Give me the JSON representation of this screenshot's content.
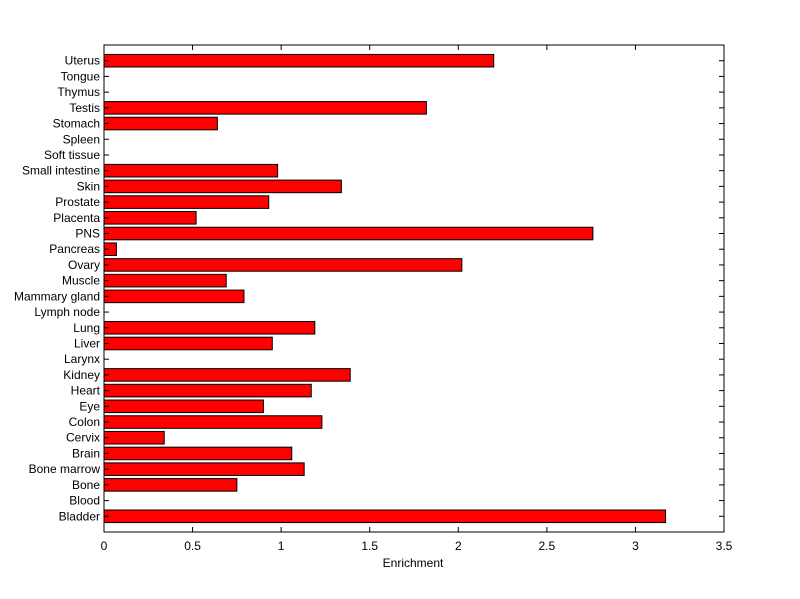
{
  "chart_data": {
    "type": "bar",
    "orientation": "horizontal",
    "title": "",
    "xlabel": "Enrichment",
    "ylabel": "",
    "xlim": [
      0,
      3.5
    ],
    "xticks": [
      "0",
      "0.5",
      "1",
      "1.5",
      "2",
      "2.5",
      "3",
      "3.5"
    ],
    "categories": [
      "Bladder",
      "Blood",
      "Bone",
      "Bone marrow",
      "Brain",
      "Cervix",
      "Colon",
      "Eye",
      "Heart",
      "Kidney",
      "Larynx",
      "Liver",
      "Lung",
      "Lymph node",
      "Mammary gland",
      "Muscle",
      "Ovary",
      "Pancreas",
      "PNS",
      "Placenta",
      "Prostate",
      "Skin",
      "Small intestine",
      "Soft tissue",
      "Spleen",
      "Stomach",
      "Testis",
      "Thymus",
      "Tongue",
      "Uterus"
    ],
    "values": [
      3.17,
      0,
      0.75,
      1.13,
      1.06,
      0.34,
      1.23,
      0.9,
      1.17,
      1.39,
      0,
      0.95,
      1.19,
      0,
      0.79,
      0.69,
      2.02,
      0.07,
      2.76,
      0.52,
      0.93,
      1.34,
      0.98,
      0,
      0,
      0.64,
      1.82,
      0,
      0,
      2.2
    ],
    "bar_color": "#ff0000",
    "edge_color": "#000000",
    "grid": false,
    "legend": "none"
  }
}
